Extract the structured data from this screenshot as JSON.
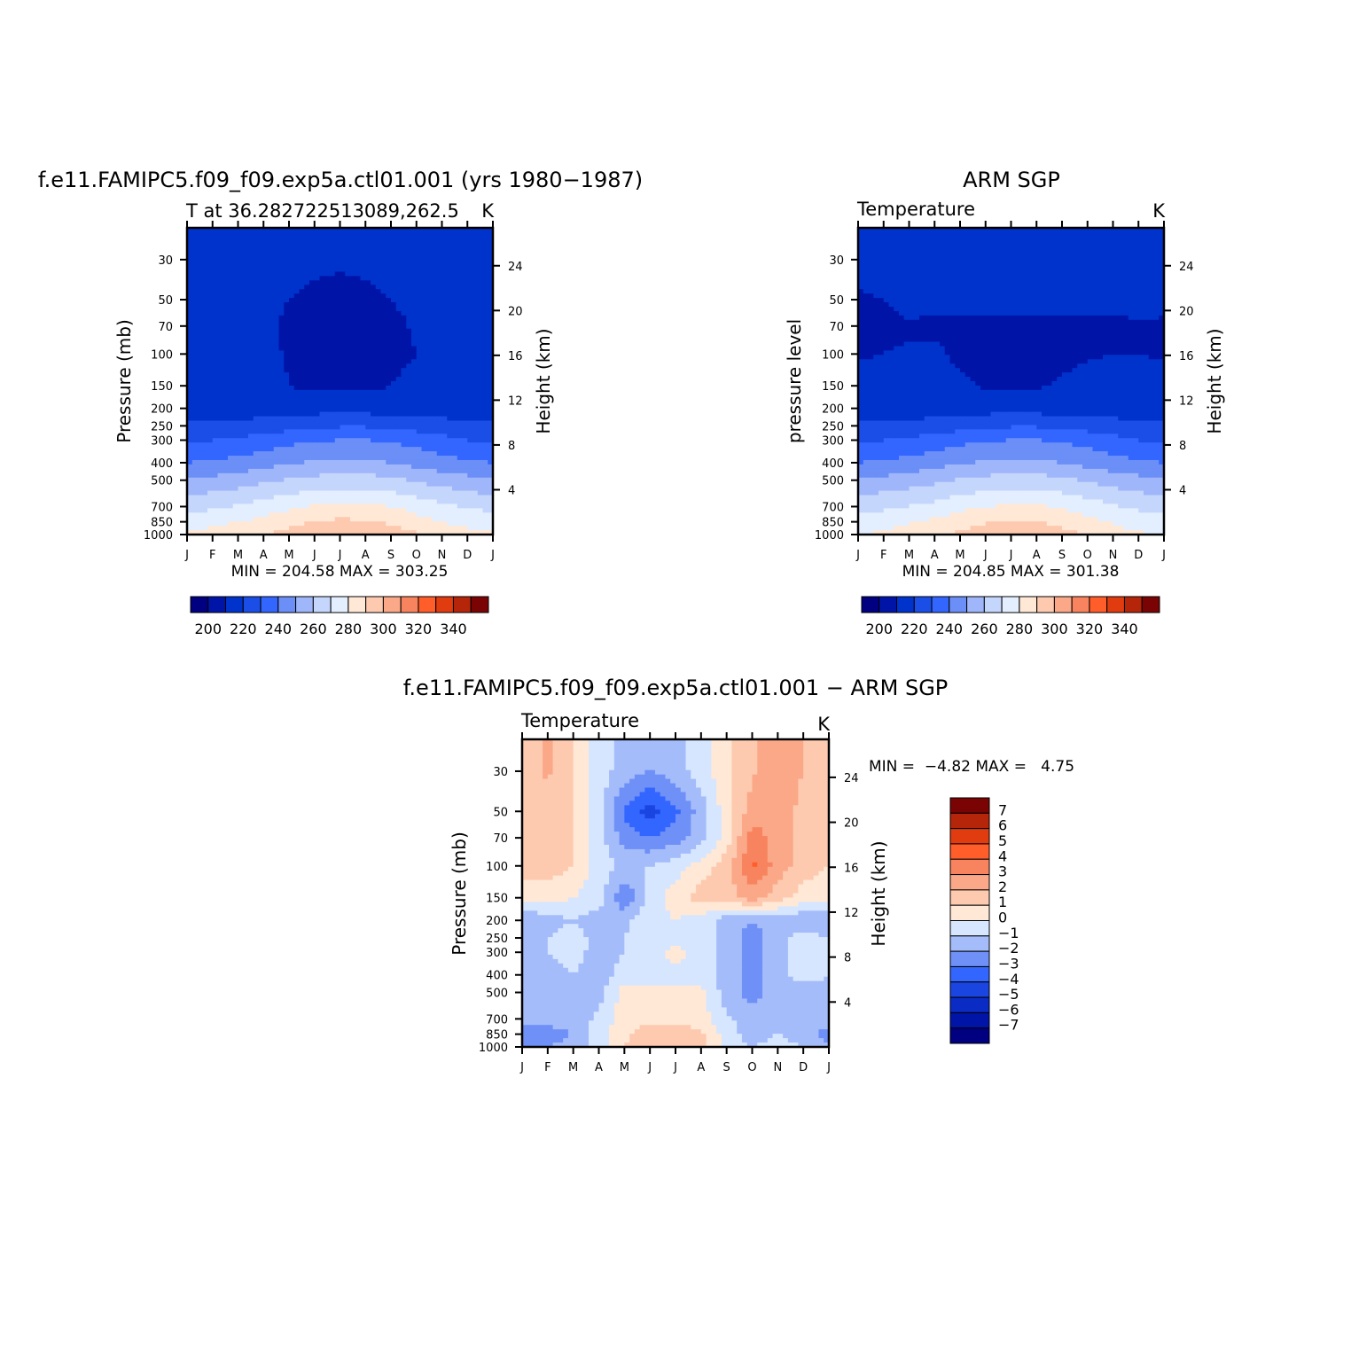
{
  "months": [
    "J",
    "F",
    "M",
    "A",
    "M",
    "J",
    "J",
    "A",
    "S",
    "O",
    "N",
    "D",
    "J"
  ],
  "pressure_ticks": [
    30,
    50,
    70,
    100,
    150,
    200,
    250,
    300,
    400,
    500,
    700,
    850,
    1000
  ],
  "height_ticks": [
    24,
    20,
    16,
    12,
    8,
    4
  ],
  "temp_levels": [
    200,
    210,
    220,
    230,
    240,
    250,
    260,
    270,
    280,
    290,
    300,
    310,
    320,
    330,
    340
  ],
  "temp_label_values": [
    "200",
    "220",
    "240",
    "260",
    "280",
    "300",
    "320",
    "340"
  ],
  "temp_colors": [
    "#000080",
    "#0015a8",
    "#0033cc",
    "#1a4ee6",
    "#3366ff",
    "#6b8ff7",
    "#9fb6fa",
    "#c5d6fc",
    "#e3efff",
    "#ffe8d6",
    "#fdcab0",
    "#fba888",
    "#f7845f",
    "#ff5d2a",
    "#e03c10",
    "#b5250a",
    "#7a0404"
  ],
  "diff_levels": [
    -7,
    -6,
    -5,
    -4,
    -3,
    -2,
    -1,
    0,
    1,
    2,
    3,
    4,
    5,
    6,
    7
  ],
  "diff_label_values": [
    "7",
    "6",
    "5",
    "4",
    "3",
    "2",
    "1",
    "0",
    "−1",
    "−2",
    "−3",
    "−4",
    "−5",
    "−6",
    "−7"
  ],
  "diff_colors": [
    "#000080",
    "#0015a8",
    "#0a2bc4",
    "#1a45e0",
    "#3366ff",
    "#6e90f7",
    "#a4bcfa",
    "#d6e6ff",
    "#ffe8d6",
    "#fdcab0",
    "#fba888",
    "#f7845f",
    "#ff5d2a",
    "#e03c10",
    "#b5250a",
    "#7a0404"
  ],
  "panels": {
    "model": {
      "main_title": "f.e11.FAMIPC5.f09_f09.exp5a.ctl01.001 (yrs 1980−1987)",
      "left_string": "T at 36.282722513089,262.5",
      "right_string": "K",
      "ylabel": "Pressure (mb)",
      "ylabel_right": "Height (km)",
      "min_max": "MIN = 204.58 MAX = 303.25"
    },
    "obs": {
      "main_title": "ARM SGP",
      "left_string": "Temperature",
      "right_string": "K",
      "ylabel": "pressure level",
      "ylabel_right": "Height (km)",
      "min_max": "MIN = 204.85 MAX = 301.38"
    },
    "diff": {
      "main_title": "f.e11.FAMIPC5.f09_f09.exp5a.ctl01.001 − ARM SGP",
      "left_string": "Temperature",
      "right_string": "K",
      "ylabel": "Pressure (mb)",
      "ylabel_right": "Height (km)",
      "min_max": "MIN =  −4.82 MAX =   4.75"
    }
  },
  "chart_data": [
    {
      "type": "heatmap",
      "title": "f.e11.FAMIPC5.f09_f09.exp5a.ctl01.001 (yrs 1980−1987)",
      "subtitle": "T at 36.282722513089,262.5",
      "units": "K",
      "xlabel": "",
      "ylabel": "Pressure (mb)",
      "ylabel_right": "Height (km)",
      "x": [
        "J",
        "F",
        "M",
        "A",
        "M",
        "J",
        "J",
        "A",
        "S",
        "O",
        "N",
        "D",
        "J"
      ],
      "y_pressure_mb": [
        30,
        50,
        70,
        100,
        150,
        200,
        250,
        300,
        400,
        500,
        700,
        850,
        1000
      ],
      "values": [
        [
          213,
          213,
          213,
          213,
          213,
          212,
          211,
          211,
          212,
          213,
          213,
          213,
          213
        ],
        [
          213,
          213,
          213,
          213,
          210,
          208,
          208,
          209,
          210,
          212,
          213,
          213,
          213
        ],
        [
          213,
          213,
          213,
          212,
          208,
          207,
          206,
          207,
          208,
          211,
          213,
          213,
          213
        ],
        [
          214,
          214,
          214,
          213,
          209,
          207,
          206,
          206,
          208,
          210,
          213,
          214,
          214
        ],
        [
          214,
          214,
          214,
          214,
          210,
          208,
          208,
          208,
          210,
          212,
          214,
          214,
          214
        ],
        [
          215,
          215,
          215,
          215,
          215,
          216,
          216,
          216,
          215,
          215,
          215,
          215,
          215
        ],
        [
          221,
          222,
          223,
          224,
          226,
          228,
          229,
          229,
          228,
          226,
          224,
          222,
          221
        ],
        [
          228,
          230,
          232,
          234,
          237,
          239,
          240,
          240,
          239,
          236,
          233,
          230,
          228
        ],
        [
          240,
          241,
          243,
          246,
          249,
          251,
          252,
          252,
          250,
          247,
          244,
          241,
          240
        ],
        [
          252,
          253,
          255,
          258,
          261,
          263,
          264,
          264,
          262,
          259,
          256,
          253,
          252
        ],
        [
          267,
          268,
          271,
          274,
          278,
          281,
          282,
          282,
          280,
          276,
          272,
          269,
          267
        ],
        [
          275,
          277,
          280,
          283,
          287,
          290,
          292,
          291,
          288,
          284,
          280,
          277,
          275
        ],
        [
          282,
          284,
          287,
          290,
          294,
          298,
          301,
          300,
          296,
          291,
          286,
          283,
          282
        ]
      ],
      "min": 204.58,
      "max": 303.25,
      "colorbar_levels": [
        200,
        210,
        220,
        230,
        240,
        250,
        260,
        270,
        280,
        290,
        300,
        310,
        320,
        330,
        340
      ]
    },
    {
      "type": "heatmap",
      "title": "ARM SGP",
      "subtitle": "Temperature",
      "units": "K",
      "xlabel": "",
      "ylabel": "pressure level",
      "ylabel_right": "Height (km)",
      "x": [
        "J",
        "F",
        "M",
        "A",
        "M",
        "J",
        "J",
        "A",
        "S",
        "O",
        "N",
        "D",
        "J"
      ],
      "y_pressure_mb": [
        30,
        50,
        70,
        100,
        150,
        200,
        250,
        300,
        400,
        500,
        700,
        850,
        1000
      ],
      "values": [
        [
          213,
          213,
          213,
          213,
          212,
          211,
          210,
          211,
          212,
          213,
          213,
          213,
          213
        ],
        [
          209,
          210,
          213,
          213,
          213,
          213,
          213,
          213,
          213,
          213,
          213,
          213,
          212
        ],
        [
          208,
          208,
          209,
          208,
          208,
          208,
          208,
          208,
          208,
          208,
          208,
          209,
          209
        ],
        [
          209,
          210,
          211,
          212,
          208,
          207,
          206,
          207,
          208,
          209,
          210,
          210,
          209
        ],
        [
          214,
          214,
          214,
          214,
          212,
          209,
          208,
          209,
          211,
          213,
          214,
          214,
          214
        ],
        [
          215,
          215,
          215,
          215,
          215,
          216,
          216,
          216,
          215,
          215,
          215,
          215,
          215
        ],
        [
          221,
          222,
          223,
          224,
          226,
          228,
          229,
          229,
          228,
          226,
          224,
          222,
          221
        ],
        [
          228,
          230,
          232,
          234,
          237,
          239,
          240,
          240,
          239,
          236,
          233,
          230,
          228
        ],
        [
          240,
          241,
          243,
          246,
          249,
          251,
          252,
          252,
          250,
          247,
          244,
          241,
          240
        ],
        [
          252,
          253,
          255,
          258,
          261,
          263,
          264,
          264,
          262,
          259,
          256,
          253,
          252
        ],
        [
          266,
          268,
          270,
          273,
          277,
          280,
          281,
          281,
          279,
          275,
          271,
          268,
          266
        ],
        [
          274,
          276,
          279,
          282,
          286,
          289,
          291,
          290,
          287,
          283,
          279,
          276,
          274
        ],
        [
          280,
          282,
          285,
          288,
          292,
          296,
          299,
          298,
          294,
          289,
          284,
          281,
          280
        ]
      ],
      "min": 204.85,
      "max": 301.38,
      "colorbar_levels": [
        200,
        210,
        220,
        230,
        240,
        250,
        260,
        270,
        280,
        290,
        300,
        310,
        320,
        330,
        340
      ]
    },
    {
      "type": "heatmap",
      "title": "f.e11.FAMIPC5.f09_f09.exp5a.ctl01.001 − ARM SGP",
      "subtitle": "Temperature",
      "units": "K",
      "xlabel": "",
      "ylabel": "Pressure (mb)",
      "ylabel_right": "Height (km)",
      "x": [
        "J",
        "F",
        "M",
        "A",
        "M",
        "J",
        "J",
        "A",
        "S",
        "O",
        "N",
        "D",
        "J"
      ],
      "y_pressure_mb": [
        30,
        50,
        70,
        100,
        150,
        200,
        250,
        300,
        400,
        500,
        700,
        850,
        1000
      ],
      "values": [
        [
          1.5,
          2.2,
          1.0,
          -0.5,
          -1.5,
          -2.0,
          -1.5,
          -0.5,
          0.8,
          1.8,
          3.0,
          2.0,
          1.5
        ],
        [
          1.5,
          1.5,
          1.0,
          -0.5,
          -3.2,
          -4.5,
          -3.2,
          -1.5,
          0.5,
          2.5,
          3.0,
          1.5,
          1.5
        ],
        [
          2.0,
          1.5,
          1.0,
          -0.5,
          -2.5,
          -3.0,
          -2.5,
          -1.5,
          0.5,
          3.5,
          2.5,
          1.5,
          1.5
        ],
        [
          1.5,
          1.5,
          1.0,
          -0.5,
          -1.2,
          -1.0,
          -0.5,
          0.5,
          1.5,
          4.2,
          2.5,
          1.5,
          1.0
        ],
        [
          0.5,
          0.5,
          0.0,
          -0.5,
          -3.0,
          -0.5,
          0.5,
          1.5,
          1.5,
          2.5,
          1.5,
          0.5,
          0.3
        ],
        [
          -2.0,
          -1.5,
          -1.0,
          -1.5,
          -1.2,
          -0.5,
          0.0,
          -0.5,
          -1.5,
          -2.0,
          -1.5,
          -2.0,
          -2.0
        ],
        [
          -1.5,
          -1.0,
          -0.5,
          -1.5,
          -1.0,
          -0.5,
          -0.5,
          -0.5,
          -1.5,
          -2.5,
          -1.5,
          -0.5,
          -1.0
        ],
        [
          -1.5,
          -1.0,
          -0.5,
          -1.5,
          -1.0,
          -0.5,
          0.5,
          -0.5,
          -1.5,
          -2.5,
          -1.5,
          -0.5,
          -1.0
        ],
        [
          -1.5,
          -1.5,
          -1.0,
          -1.5,
          -0.5,
          -0.5,
          -0.5,
          -0.5,
          -1.5,
          -2.5,
          -1.5,
          -0.5,
          -1.0
        ],
        [
          -1.5,
          -1.5,
          -1.5,
          -1.5,
          0.5,
          0.3,
          0.3,
          0.3,
          -1.5,
          -2.5,
          -1.5,
          -1.5,
          -1.5
        ],
        [
          -1.5,
          -1.5,
          -1.5,
          -0.8,
          0.5,
          0.8,
          0.8,
          0.5,
          -0.8,
          -1.5,
          -1.5,
          -1.5,
          -1.5
        ],
        [
          -2.5,
          -2.5,
          -2.0,
          -0.5,
          0.8,
          1.5,
          1.5,
          1.2,
          -0.5,
          -1.5,
          -1.0,
          -1.5,
          -2.5
        ],
        [
          -2.0,
          -2.0,
          -1.5,
          -0.5,
          1.0,
          1.5,
          1.8,
          1.5,
          -0.5,
          -1.0,
          -0.5,
          -1.0,
          -2.0
        ]
      ],
      "min": -4.82,
      "max": 4.75,
      "colorbar_levels": [
        -7,
        -6,
        -5,
        -4,
        -3,
        -2,
        -1,
        0,
        1,
        2,
        3,
        4,
        5,
        6,
        7
      ]
    }
  ]
}
